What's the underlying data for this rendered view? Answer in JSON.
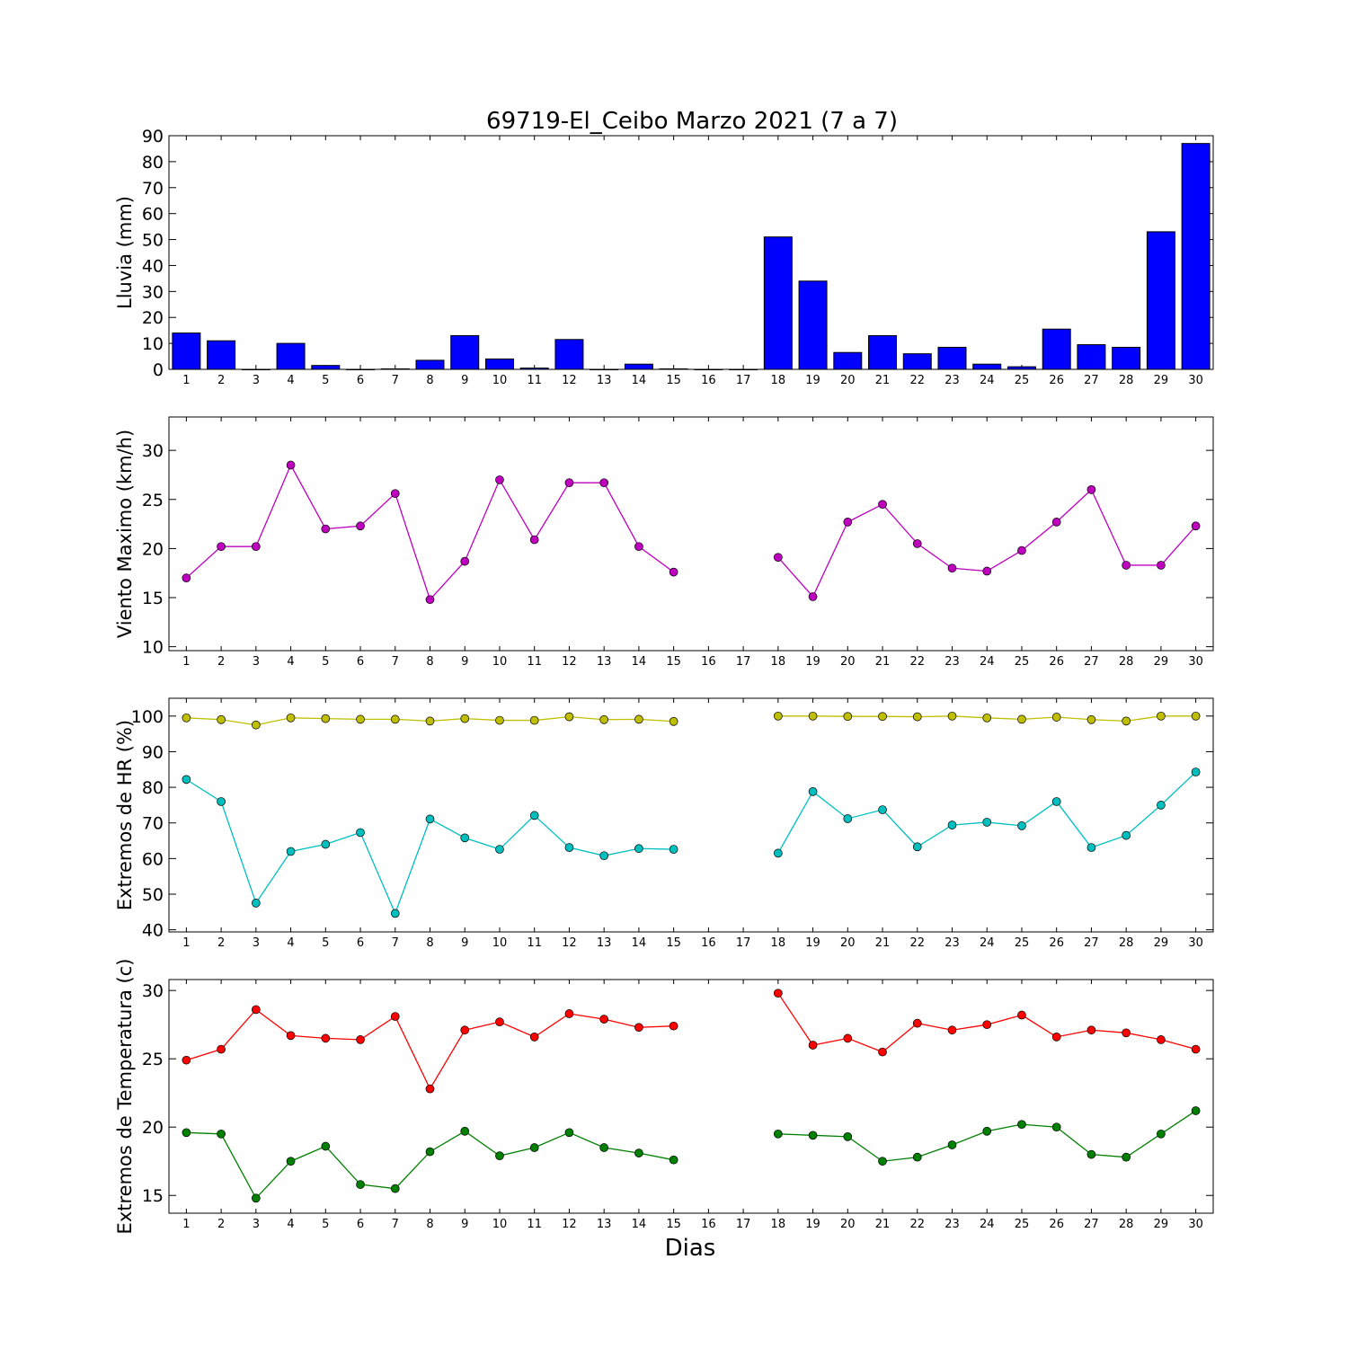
{
  "title": "69719-El_Ceibo Marzo 2021  (7 a 7)",
  "xlabel": "Dias",
  "days": [
    1,
    2,
    3,
    4,
    5,
    6,
    7,
    8,
    9,
    10,
    11,
    12,
    13,
    14,
    15,
    16,
    17,
    18,
    19,
    20,
    21,
    22,
    23,
    24,
    25,
    26,
    27,
    28,
    29,
    30
  ],
  "chart_data": [
    {
      "type": "bar",
      "ylabel": "Lluvia (mm)",
      "ylim": [
        0,
        90
      ],
      "yticks": [
        0,
        10,
        20,
        30,
        40,
        50,
        60,
        70,
        80,
        90
      ],
      "series": [
        {
          "color": "#0000ff",
          "values": [
            14,
            11,
            0,
            10,
            1.5,
            0,
            0.2,
            3.5,
            13,
            4,
            0.5,
            11.5,
            0,
            2,
            0.2,
            0,
            0,
            51,
            34,
            6.5,
            13,
            6,
            8.5,
            2,
            1,
            15.5,
            9.5,
            8.5,
            53,
            87
          ]
        }
      ]
    },
    {
      "type": "line",
      "ylabel": "Viento Maximo (km/h)",
      "ylim": [
        9.6,
        33.4
      ],
      "yticks": [
        10,
        15,
        20,
        25,
        30
      ],
      "series": [
        {
          "color": "#bf00bf",
          "values": [
            17,
            20.2,
            20.2,
            28.5,
            22,
            22.3,
            25.6,
            14.8,
            18.7,
            27,
            20.9,
            26.7,
            26.7,
            20.2,
            17.6,
            null,
            null,
            19.1,
            15.1,
            22.7,
            24.5,
            20.5,
            18,
            17.7,
            19.8,
            22.7,
            26,
            18.3,
            18.3,
            22.3
          ]
        }
      ]
    },
    {
      "type": "line",
      "ylabel": "Extremos de HR (%)",
      "ylim": [
        39.4,
        105
      ],
      "yticks": [
        40,
        50,
        60,
        70,
        80,
        90,
        100
      ],
      "series": [
        {
          "color": "#bfbf00",
          "values": [
            99.5,
            99,
            97.5,
            99.5,
            99.3,
            99.1,
            99.1,
            98.6,
            99.3,
            98.8,
            98.8,
            99.8,
            99,
            99.1,
            98.5,
            null,
            null,
            100,
            100,
            99.9,
            99.9,
            99.8,
            100,
            99.5,
            99.1,
            99.7,
            99,
            98.6,
            100,
            100
          ]
        },
        {
          "color": "#00bfbf",
          "values": [
            82.2,
            76,
            47.5,
            62,
            64,
            67.3,
            44.6,
            71.1,
            65.8,
            62.6,
            72.1,
            63.1,
            60.8,
            62.8,
            62.6,
            null,
            null,
            61.5,
            78.8,
            71.2,
            73.7,
            63.3,
            69.4,
            70.2,
            69.2,
            76,
            63.1,
            66.5,
            75,
            84.3
          ]
        }
      ]
    },
    {
      "type": "line",
      "ylabel": "Extremos de Temperatura (c)",
      "ylim": [
        13.7,
        30.8
      ],
      "yticks": [
        15,
        20,
        25,
        30
      ],
      "series": [
        {
          "color": "#ff0000",
          "values": [
            24.9,
            25.7,
            28.6,
            26.7,
            26.5,
            26.4,
            28.1,
            22.8,
            27.1,
            27.7,
            26.6,
            28.3,
            27.9,
            27.3,
            27.4,
            null,
            null,
            29.8,
            26,
            26.5,
            25.5,
            27.6,
            27.1,
            27.5,
            28.2,
            26.6,
            27.1,
            26.9,
            26.4,
            25.7
          ]
        },
        {
          "color": "#008000",
          "values": [
            19.6,
            19.5,
            14.8,
            17.5,
            18.6,
            15.8,
            15.5,
            18.2,
            19.7,
            17.9,
            18.5,
            19.6,
            18.5,
            18.1,
            17.6,
            null,
            null,
            19.5,
            19.4,
            19.3,
            17.5,
            17.8,
            18.7,
            19.7,
            20.2,
            20,
            18,
            17.8,
            19.5,
            21.2
          ]
        }
      ]
    }
  ]
}
